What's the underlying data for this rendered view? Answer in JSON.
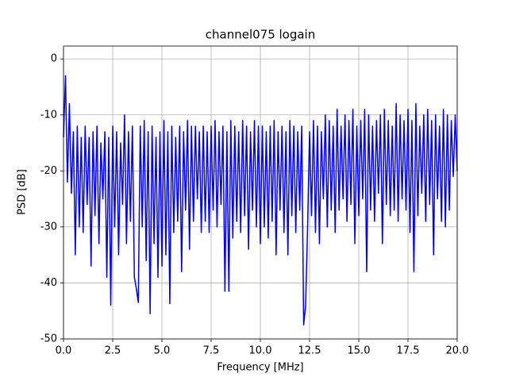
{
  "chart_data": {
    "type": "line",
    "title": "channel075 logain",
    "xlabel": "Frequency [MHz]",
    "ylabel": "PSD [dB]",
    "xlim": [
      0,
      20
    ],
    "ylim": [
      -50,
      2.3
    ],
    "xticks": [
      {
        "value": 0,
        "label": "0.0"
      },
      2.5,
      {
        "value": 5,
        "label": "5.0"
      },
      7.5,
      {
        "value": 10,
        "label": "10.0"
      },
      12.5,
      {
        "value": 15,
        "label": "15.0"
      },
      17.5,
      {
        "value": 20,
        "label": "20.0"
      }
    ],
    "yticks": [
      0,
      -10,
      -20,
      -30,
      -40,
      -50
    ],
    "grid": true,
    "color": "#0000ff",
    "x": [
      0,
      0.1,
      0.2,
      0.3,
      0.4,
      0.5,
      0.6,
      0.7,
      0.8,
      0.9,
      1,
      1.1,
      1.2,
      1.3,
      1.4,
      1.5,
      1.6,
      1.7,
      1.8,
      1.9,
      2,
      2.1,
      2.2,
      2.3,
      2.4,
      2.5,
      2.6,
      2.7,
      2.8,
      2.9,
      3,
      3.1,
      3.2,
      3.3,
      3.4,
      3.5,
      3.6,
      3.7,
      3.8,
      3.9,
      4,
      4.1,
      4.2,
      4.3,
      4.4,
      4.5,
      4.6,
      4.7,
      4.8,
      4.9,
      5,
      5.1,
      5.2,
      5.3,
      5.4,
      5.5,
      5.6,
      5.7,
      5.8,
      5.9,
      6,
      6.1,
      6.2,
      6.3,
      6.4,
      6.5,
      6.6,
      6.7,
      6.8,
      6.9,
      7,
      7.1,
      7.2,
      7.3,
      7.4,
      7.5,
      7.6,
      7.7,
      7.8,
      7.9,
      8,
      8.1,
      8.2,
      8.3,
      8.4,
      8.5,
      8.6,
      8.7,
      8.8,
      8.9,
      9,
      9.1,
      9.2,
      9.3,
      9.4,
      9.5,
      9.6,
      9.7,
      9.8,
      9.9,
      10,
      10.1,
      10.2,
      10.3,
      10.4,
      10.5,
      10.6,
      10.7,
      10.8,
      10.9,
      11,
      11.1,
      11.2,
      11.3,
      11.4,
      11.5,
      11.6,
      11.7,
      11.8,
      11.9,
      12,
      12.1,
      12.2,
      12.3,
      12.4,
      12.5,
      12.6,
      12.7,
      12.8,
      12.9,
      13,
      13.1,
      13.2,
      13.3,
      13.4,
      13.5,
      13.6,
      13.7,
      13.8,
      13.9,
      14,
      14.1,
      14.2,
      14.3,
      14.4,
      14.5,
      14.6,
      14.7,
      14.8,
      14.9,
      15,
      15.1,
      15.2,
      15.3,
      15.4,
      15.5,
      15.6,
      15.7,
      15.8,
      15.9,
      16,
      16.1,
      16.2,
      16.3,
      16.4,
      16.5,
      16.6,
      16.7,
      16.8,
      16.9,
      17,
      17.1,
      17.2,
      17.3,
      17.4,
      17.5,
      17.6,
      17.7,
      17.8,
      17.9,
      18,
      18.1,
      18.2,
      18.3,
      18.4,
      18.5,
      18.6,
      18.7,
      18.8,
      18.9,
      19,
      19.1,
      19.2,
      19.3,
      19.4,
      19.5,
      19.6,
      19.7,
      19.8,
      19.9,
      20
    ],
    "values": [
      -14,
      -3,
      -22,
      -8,
      -24,
      -13,
      -35,
      -12,
      -30,
      -14,
      -31,
      -12,
      -26,
      -14,
      -37,
      -13,
      -28,
      -12,
      -33,
      -15,
      -25,
      -13,
      -39,
      -14,
      -44,
      -12,
      -30,
      -13,
      -35,
      -15,
      -26,
      -10,
      -33,
      -13,
      -29,
      -12,
      -39,
      -41,
      -43.5,
      -12,
      -30,
      -11,
      -36,
      -13,
      -45.5,
      -12,
      -33,
      -14,
      -39,
      -13,
      -37,
      -11,
      -35,
      -13,
      -43.7,
      -12,
      -31,
      -14,
      -29,
      -12,
      -38,
      -13,
      -27,
      -11,
      -34,
      -12,
      -29,
      -12,
      -25,
      -13,
      -31,
      -12,
      -29,
      -13,
      -31,
      -12,
      -27,
      -11,
      -30,
      -13,
      -26,
      -12,
      -41.5,
      -13,
      -41.5,
      -11,
      -32,
      -12,
      -29,
      -13,
      -31,
      -11,
      -28,
      -12,
      -34,
      -13,
      -27,
      -11,
      -30,
      -12,
      -33,
      -12,
      -30,
      -13,
      -32,
      -12,
      -29,
      -11,
      -35,
      -13,
      -27,
      -12,
      -31,
      -13,
      -35,
      -11,
      -28,
      -12,
      -31,
      -13,
      -27,
      -12,
      -47.5,
      -44,
      -30,
      -13,
      -28,
      -11,
      -31,
      -12,
      -33,
      -13,
      -25,
      -10,
      -30,
      -11,
      -27,
      -12,
      -31,
      -9,
      -27,
      -12,
      -25,
      -10,
      -29,
      -11,
      -26,
      -9,
      -33,
      -12,
      -28,
      -11,
      -25,
      -9,
      -38,
      -10,
      -27,
      -12,
      -29,
      -11,
      -24,
      -10,
      -33,
      -9,
      -26,
      -11,
      -28,
      -12,
      -27,
      -8,
      -29,
      -10,
      -25,
      -11,
      -27,
      -9,
      -31,
      -11,
      -38,
      -8,
      -28,
      -12,
      -24,
      -10,
      -29,
      -9,
      -26,
      -11,
      -35,
      -10,
      -25,
      -12,
      -29,
      -9,
      -30,
      -10,
      -27,
      -11,
      -21,
      -10,
      -20
    ]
  }
}
